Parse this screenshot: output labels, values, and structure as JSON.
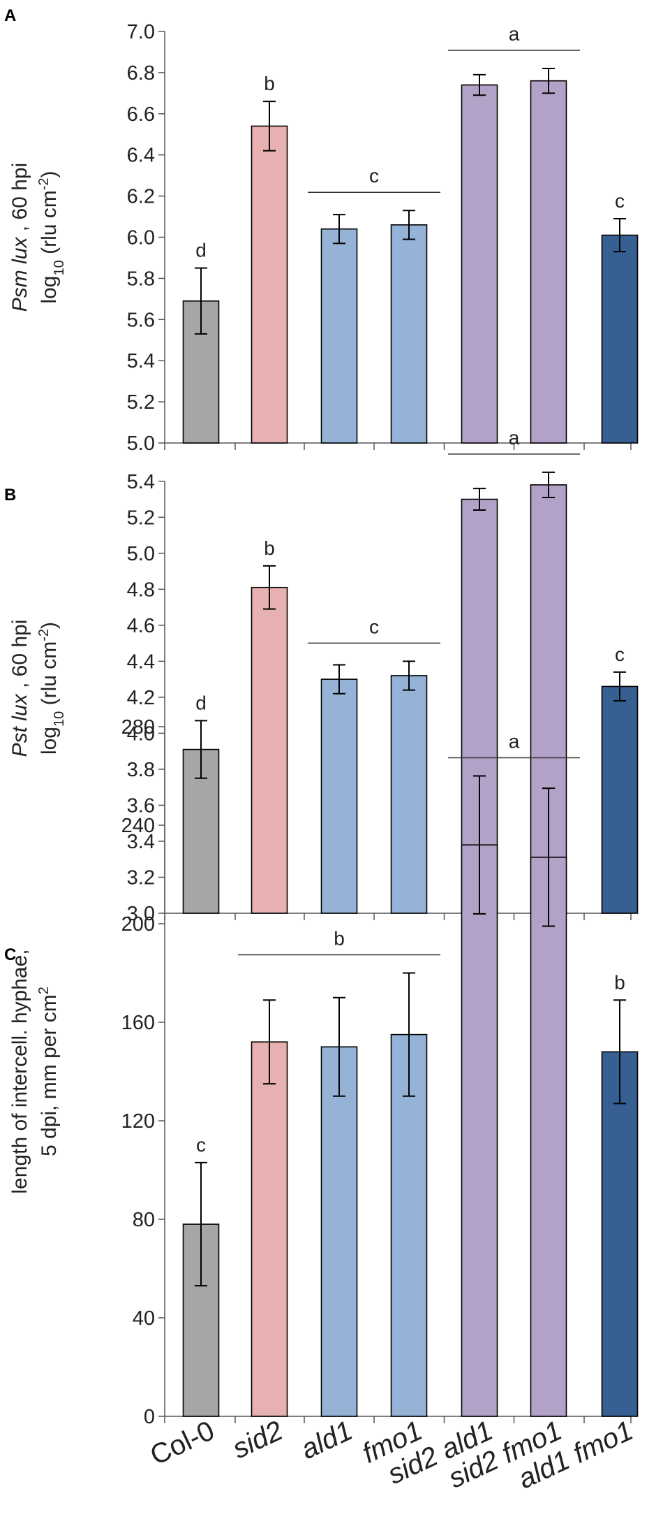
{
  "chart_data": [
    {
      "type": "bar",
      "panel_label": "A",
      "ylabel_lines": [
        [
          {
            "t": "Psm  lux",
            "i": true
          },
          {
            "t": " , 60  hpi"
          }
        ],
        [
          {
            "t": "log"
          },
          {
            "t": "10",
            "sub": true
          },
          {
            "t": " (rlu cm"
          },
          {
            "t": "-2",
            "sup": true
          },
          {
            "t": ")"
          }
        ]
      ],
      "ylim": [
        5.0,
        7.0
      ],
      "yticks": [
        5.0,
        5.2,
        5.4,
        5.6,
        5.8,
        6.0,
        6.2,
        6.4,
        6.6,
        6.8,
        7.0
      ],
      "tick_format": "1dp",
      "values": [
        5.69,
        6.54,
        6.04,
        6.06,
        6.74,
        6.76,
        6.01
      ],
      "errors": [
        0.16,
        0.12,
        0.07,
        0.07,
        0.05,
        0.06,
        0.08
      ],
      "letters": [
        {
          "text": "d",
          "bars": [
            0
          ]
        },
        {
          "text": "b",
          "bars": [
            1
          ]
        },
        {
          "text": "c",
          "bars": [
            2,
            3
          ]
        },
        {
          "text": "a",
          "bars": [
            4,
            5
          ]
        },
        {
          "text": "c",
          "bars": [
            6
          ]
        }
      ]
    },
    {
      "type": "bar",
      "panel_label": "B",
      "ylabel_lines": [
        [
          {
            "t": "Pst  lux",
            "i": true
          },
          {
            "t": " , 60  hpi"
          }
        ],
        [
          {
            "t": "log"
          },
          {
            "t": "10",
            "sub": true
          },
          {
            "t": " (rlu cm"
          },
          {
            "t": "-2",
            "sup": true
          },
          {
            "t": ")"
          }
        ]
      ],
      "ylim": [
        3.0,
        5.5
      ],
      "yticks": [
        3.0,
        3.2,
        3.4,
        3.6,
        3.8,
        4.0,
        4.2,
        4.4,
        4.6,
        4.8,
        5.0,
        5.2,
        5.4
      ],
      "tick_format": "1dp",
      "values": [
        3.91,
        4.81,
        4.3,
        4.32,
        5.3,
        5.38,
        4.26
      ],
      "errors": [
        0.16,
        0.12,
        0.08,
        0.08,
        0.06,
        0.07,
        0.08
      ],
      "letters": [
        {
          "text": "d",
          "bars": [
            0
          ]
        },
        {
          "text": "b",
          "bars": [
            1
          ]
        },
        {
          "text": "c",
          "bars": [
            2,
            3
          ]
        },
        {
          "text": "a",
          "bars": [
            4,
            5
          ]
        },
        {
          "text": "c",
          "bars": [
            6
          ]
        }
      ]
    },
    {
      "type": "bar",
      "panel_label": "C",
      "ylabel_lines": [
        [
          {
            "t": "length of intercell. hyphae,"
          }
        ],
        [
          {
            "t": "5 dpi, mm per  cm"
          },
          {
            "t": "2",
            "sup": true
          }
        ]
      ],
      "ylim": [
        0,
        280
      ],
      "yticks": [
        0,
        40,
        80,
        120,
        160,
        200,
        240,
        280
      ],
      "tick_format": "int",
      "values": [
        78,
        152,
        150,
        155,
        232,
        227,
        148
      ],
      "errors": [
        25,
        17,
        20,
        25,
        28,
        28,
        21
      ],
      "letters": [
        {
          "text": "c",
          "bars": [
            0
          ]
        },
        {
          "text": "b",
          "bars": [
            1,
            2,
            3
          ]
        },
        {
          "text": "a",
          "bars": [
            4,
            5
          ]
        },
        {
          "text": "b",
          "bars": [
            6
          ]
        }
      ]
    }
  ],
  "categories": [
    "Col-0",
    "sid2",
    "ald1",
    "fmo1",
    "sid2 ald1",
    "sid2 fmo1",
    "ald1 fmo1"
  ],
  "bar_colors": [
    "#a6a6a6",
    "#e6b1b0",
    "#95b3d7",
    "#95b3d7",
    "#b3a2c7",
    "#b3a2c7",
    "#376092"
  ],
  "bar_outline": "#000000"
}
